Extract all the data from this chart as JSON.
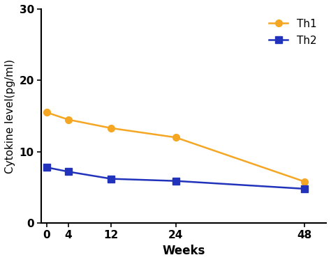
{
  "weeks": [
    0,
    4,
    12,
    24,
    48
  ],
  "th1_values": [
    15.5,
    14.5,
    13.3,
    12.0,
    5.8
  ],
  "th2_values": [
    7.8,
    7.2,
    6.2,
    5.9,
    4.8
  ],
  "th1_color": "#F5A623",
  "th2_color": "#2233BB",
  "th1_label": "Th1",
  "th2_label": "Th2",
  "xlabel": "Weeks",
  "ylabel": "Cytokine level(pg/ml)",
  "xlim": [
    -1,
    52
  ],
  "ylim": [
    0,
    30
  ],
  "yticks": [
    0,
    10,
    20,
    30
  ],
  "xticks": [
    0,
    4,
    12,
    24,
    48
  ],
  "background_color": "#ffffff",
  "marker_th1": "o",
  "marker_th2": "s",
  "linewidth": 1.8,
  "markersize": 7,
  "legend_fontsize": 11,
  "axis_label_fontsize": 12,
  "tick_fontsize": 11
}
